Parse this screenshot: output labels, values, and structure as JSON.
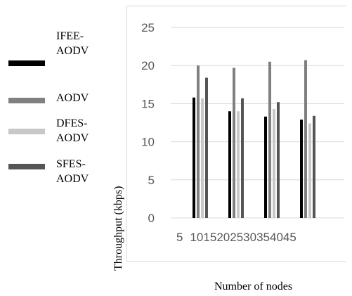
{
  "chart_data": {
    "type": "bar",
    "title": "",
    "xlabel": "Number of nodes",
    "ylabel": "Throughput (kbps)",
    "ylim": [
      0,
      25
    ],
    "yticks": [
      0,
      5,
      10,
      15,
      20,
      25
    ],
    "x_tick_labels": [
      "5",
      "10",
      "15",
      "20",
      "25",
      "30",
      "35",
      "40",
      "45"
    ],
    "categories": [
      "10",
      "20",
      "30",
      "40"
    ],
    "grid": true,
    "legend_position": "left",
    "series": [
      {
        "name": "IFEE-AODV",
        "color": "#000000",
        "values": [
          15.8,
          14.0,
          13.3,
          12.9
        ]
      },
      {
        "name": "AODV",
        "color": "#808080",
        "values": [
          20.0,
          19.7,
          20.5,
          20.7
        ]
      },
      {
        "name": "DFES-AODV",
        "color": "#c8c8c8",
        "values": [
          15.7,
          14.0,
          14.3,
          12.4
        ]
      },
      {
        "name": "SFES-AODV",
        "color": "#555555",
        "values": [
          18.4,
          15.7,
          15.2,
          13.4
        ]
      }
    ]
  }
}
